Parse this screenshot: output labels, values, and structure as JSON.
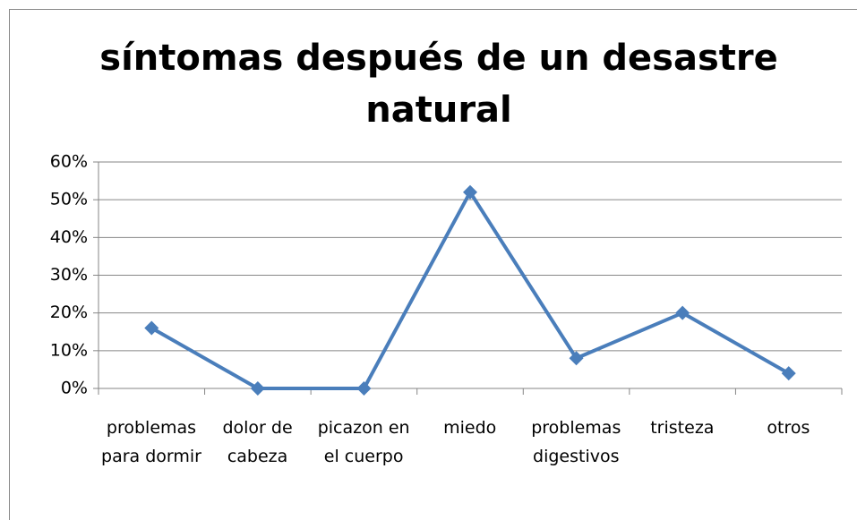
{
  "chart_data": {
    "type": "line",
    "title": "síntomas después de un desastre natural",
    "categories": [
      "problemas para dormir",
      "dolor de cabeza",
      "picazon en el cuerpo",
      "miedo",
      "problemas digestivos",
      "tristeza",
      "otros"
    ],
    "values": [
      16,
      0,
      0,
      52,
      8,
      20,
      4
    ],
    "color": "#4a7ebb",
    "ylim": [
      0,
      60
    ],
    "yticks": [
      {
        "value": 0,
        "label": "0%"
      },
      {
        "value": 10,
        "label": "10%"
      },
      {
        "value": 20,
        "label": "20%"
      },
      {
        "value": 30,
        "label": "30%"
      },
      {
        "value": 40,
        "label": "40%"
      },
      {
        "value": 50,
        "label": "50%"
      },
      {
        "value": 60,
        "label": "60%"
      }
    ],
    "grid": true
  }
}
